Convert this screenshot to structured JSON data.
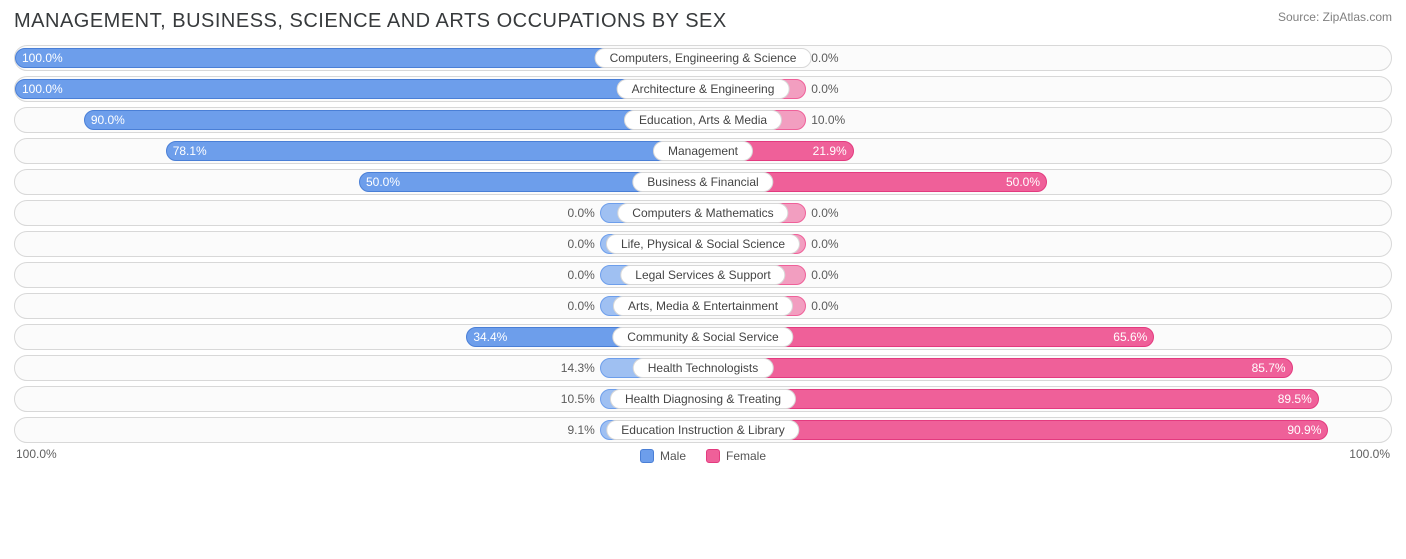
{
  "title": "MANAGEMENT, BUSINESS, SCIENCE AND ARTS OCCUPATIONS BY SEX",
  "source": "Source: ZipAtlas.com",
  "axis": {
    "left": "100.0%",
    "right": "100.0%"
  },
  "legend": {
    "male": "Male",
    "female": "Female"
  },
  "colors": {
    "male_fill": "#6d9eeb",
    "male_border": "#4a7fd6",
    "female_fill": "#ef6099",
    "female_border": "#e33a7f",
    "bar_min_fill_male": "#9fc0f2",
    "bar_min_fill_female": "#f29ec0",
    "row_bg": "#fbfbfb",
    "row_border": "#d8d8d8",
    "title_color": "#373a3c",
    "text_muted": "#808080"
  },
  "min_bar_pct": 15,
  "rows": [
    {
      "label": "Computers, Engineering & Science",
      "male": 100.0,
      "female": 0.0
    },
    {
      "label": "Architecture & Engineering",
      "male": 100.0,
      "female": 0.0
    },
    {
      "label": "Education, Arts & Media",
      "male": 90.0,
      "female": 10.0
    },
    {
      "label": "Management",
      "male": 78.1,
      "female": 21.9
    },
    {
      "label": "Business & Financial",
      "male": 50.0,
      "female": 50.0
    },
    {
      "label": "Computers & Mathematics",
      "male": 0.0,
      "female": 0.0
    },
    {
      "label": "Life, Physical & Social Science",
      "male": 0.0,
      "female": 0.0
    },
    {
      "label": "Legal Services & Support",
      "male": 0.0,
      "female": 0.0
    },
    {
      "label": "Arts, Media & Entertainment",
      "male": 0.0,
      "female": 0.0
    },
    {
      "label": "Community & Social Service",
      "male": 34.4,
      "female": 65.6
    },
    {
      "label": "Health Technologists",
      "male": 14.3,
      "female": 85.7
    },
    {
      "label": "Health Diagnosing & Treating",
      "male": 10.5,
      "female": 89.5
    },
    {
      "label": "Education Instruction & Library",
      "male": 9.1,
      "female": 90.9
    }
  ]
}
